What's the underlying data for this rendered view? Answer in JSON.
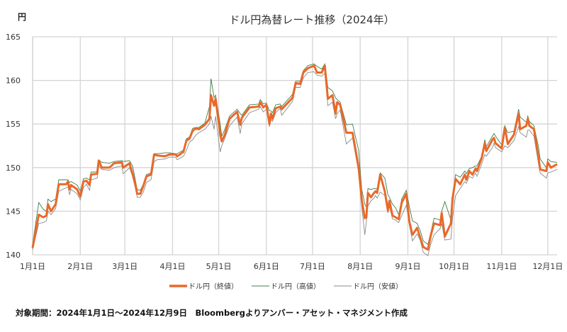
{
  "chart_data": {
    "type": "line",
    "title": "ドル円為替レート推移（2024年）",
    "ylabel": "円",
    "xlabel": "",
    "ylim": [
      140,
      165
    ],
    "yticks": [
      140,
      145,
      150,
      155,
      160,
      165
    ],
    "x_unit": "day of year 2024 (0 = Jan 1)",
    "xlim": [
      0,
      343
    ],
    "xticks": [
      {
        "day": 0,
        "label": "1月1日"
      },
      {
        "day": 31,
        "label": "2月1日"
      },
      {
        "day": 60,
        "label": "3月1日"
      },
      {
        "day": 91,
        "label": "4月1日"
      },
      {
        "day": 121,
        "label": "5月1日"
      },
      {
        "day": 152,
        "label": "6月1日"
      },
      {
        "day": 182,
        "label": "7月1日"
      },
      {
        "day": 213,
        "label": "8月1日"
      },
      {
        "day": 244,
        "label": "9月1日"
      },
      {
        "day": 274,
        "label": "10月1日"
      },
      {
        "day": 305,
        "label": "11月1日"
      },
      {
        "day": 335,
        "label": "12月1日"
      }
    ],
    "grid": true,
    "legend_position": "bottom",
    "series": [
      {
        "name": "ドル円（終値）",
        "color": "#e8692a"
      },
      {
        "name": "ドル円（高値）",
        "color": "#3f7f4a"
      },
      {
        "name": "ドル円（安値）",
        "color": "#8a8a8a"
      }
    ],
    "points_columns": [
      "day",
      "close",
      "high",
      "low"
    ],
    "points": [
      [
        0,
        140.8,
        141.2,
        140.6
      ],
      [
        4,
        144.6,
        146.0,
        143.6
      ],
      [
        7,
        144.3,
        145.2,
        143.7
      ],
      [
        9,
        144.5,
        145.0,
        143.9
      ],
      [
        10,
        145.8,
        146.4,
        145.0
      ],
      [
        12,
        145.0,
        146.1,
        144.6
      ],
      [
        15,
        145.8,
        146.4,
        145.3
      ],
      [
        17,
        148.1,
        148.6,
        147.3
      ],
      [
        22,
        148.1,
        148.6,
        147.7
      ],
      [
        23,
        148.4,
        148.6,
        147.8
      ],
      [
        24,
        147.5,
        148.3,
        146.9
      ],
      [
        25,
        148.0,
        148.4,
        147.5
      ],
      [
        29,
        147.5,
        148.0,
        147.0
      ],
      [
        31,
        146.7,
        147.3,
        146.3
      ],
      [
        33,
        148.4,
        148.7,
        147.7
      ],
      [
        35,
        148.5,
        148.8,
        148.1
      ],
      [
        37,
        148.0,
        148.6,
        147.4
      ],
      [
        38,
        149.2,
        149.5,
        148.6
      ],
      [
        42,
        149.3,
        149.5,
        148.8
      ],
      [
        43,
        150.8,
        150.9,
        150.2
      ],
      [
        45,
        150.0,
        150.6,
        149.8
      ],
      [
        50,
        150.0,
        150.5,
        149.7
      ],
      [
        53,
        150.5,
        150.7,
        150.0
      ],
      [
        58,
        150.6,
        150.8,
        150.2
      ],
      [
        59,
        150.0,
        150.7,
        149.3
      ],
      [
        63,
        150.5,
        150.8,
        150.0
      ],
      [
        65,
        149.3,
        150.2,
        149.0
      ],
      [
        67,
        147.9,
        148.4,
        147.5
      ],
      [
        68,
        147.0,
        147.5,
        146.6
      ],
      [
        70,
        147.0,
        147.4,
        146.6
      ],
      [
        72,
        147.9,
        148.1,
        147.2
      ],
      [
        74,
        149.0,
        149.2,
        148.3
      ],
      [
        77,
        149.2,
        149.4,
        148.6
      ],
      [
        79,
        151.5,
        151.6,
        150.7
      ],
      [
        81,
        151.4,
        151.6,
        150.9
      ],
      [
        86,
        151.3,
        151.7,
        151.0
      ],
      [
        89,
        151.5,
        151.7,
        151.2
      ],
      [
        93,
        151.5,
        151.6,
        151.2
      ],
      [
        94,
        151.3,
        151.6,
        150.9
      ],
      [
        98,
        151.8,
        152.0,
        151.3
      ],
      [
        100,
        153.1,
        153.3,
        152.0
      ],
      [
        102,
        153.3,
        153.5,
        152.9
      ],
      [
        104,
        154.2,
        154.5,
        153.2
      ],
      [
        106,
        154.5,
        154.6,
        153.7
      ],
      [
        108,
        154.4,
        154.6,
        154.0
      ],
      [
        112,
        154.9,
        155.1,
        154.4
      ],
      [
        115,
        155.6,
        157.0,
        155.0
      ],
      [
        116,
        158.3,
        160.2,
        155.9
      ],
      [
        118,
        157.1,
        158.0,
        154.4
      ],
      [
        119,
        157.9,
        158.3,
        155.9
      ],
      [
        122,
        153.8,
        155.0,
        151.8
      ],
      [
        123,
        153.0,
        153.6,
        152.5
      ],
      [
        125,
        153.8,
        154.4,
        153.4
      ],
      [
        128,
        155.6,
        155.9,
        154.8
      ],
      [
        133,
        156.4,
        156.7,
        155.8
      ],
      [
        135,
        154.9,
        156.2,
        153.9
      ],
      [
        136,
        155.7,
        156.0,
        155.0
      ],
      [
        141,
        156.9,
        157.2,
        156.3
      ],
      [
        147,
        157.0,
        157.3,
        156.7
      ],
      [
        148,
        157.5,
        157.8,
        157.0
      ],
      [
        150,
        156.9,
        157.3,
        156.4
      ],
      [
        152,
        157.2,
        157.4,
        156.7
      ],
      [
        154,
        155.0,
        156.5,
        154.7
      ],
      [
        155,
        156.2,
        156.5,
        155.5
      ],
      [
        156,
        155.6,
        156.3,
        155.3
      ],
      [
        158,
        156.8,
        157.2,
        156.3
      ],
      [
        161,
        157.0,
        157.3,
        156.8
      ],
      [
        162,
        156.7,
        157.0,
        156.0
      ],
      [
        169,
        158.0,
        158.4,
        157.6
      ],
      [
        171,
        159.7,
        159.9,
        159.2
      ],
      [
        174,
        159.6,
        159.9,
        159.2
      ],
      [
        176,
        160.9,
        161.1,
        160.3
      ],
      [
        179,
        161.4,
        161.7,
        160.9
      ],
      [
        183,
        161.7,
        161.9,
        161.0
      ],
      [
        185,
        160.9,
        161.6,
        160.6
      ],
      [
        188,
        160.9,
        161.3,
        160.5
      ],
      [
        190,
        161.7,
        161.9,
        160.8
      ],
      [
        192,
        157.9,
        159.2,
        157.1
      ],
      [
        195,
        158.3,
        158.8,
        157.5
      ],
      [
        197,
        156.2,
        158.0,
        155.6
      ],
      [
        198,
        157.5,
        157.8,
        156.2
      ],
      [
        200,
        157.2,
        157.5,
        156.6
      ],
      [
        204,
        154.0,
        154.9,
        152.7
      ],
      [
        208,
        154.0,
        155.0,
        153.4
      ],
      [
        212,
        150.0,
        152.0,
        149.5
      ],
      [
        214,
        146.3,
        147.5,
        145.5
      ],
      [
        216,
        144.2,
        145.8,
        142.3
      ],
      [
        217,
        144.3,
        145.5,
        143.8
      ],
      [
        218,
        147.1,
        147.6,
        145.6
      ],
      [
        220,
        146.6,
        147.5,
        146.2
      ],
      [
        222,
        147.1,
        147.6,
        146.5
      ],
      [
        223,
        147.3,
        147.6,
        146.8
      ],
      [
        224,
        147.1,
        147.6,
        146.5
      ],
      [
        226,
        149.2,
        149.4,
        147.2
      ],
      [
        229,
        147.3,
        148.8,
        146.8
      ],
      [
        231,
        145.1,
        146.9,
        144.8
      ],
      [
        232,
        146.2,
        146.6,
        145.6
      ],
      [
        234,
        144.5,
        145.8,
        144.1
      ],
      [
        236,
        144.3,
        145.4,
        144.0
      ],
      [
        238,
        144.1,
        144.6,
        143.7
      ],
      [
        240,
        146.0,
        146.4,
        144.5
      ],
      [
        243,
        147.0,
        147.4,
        145.7
      ],
      [
        245,
        143.8,
        145.5,
        143.4
      ],
      [
        247,
        142.3,
        143.9,
        141.6
      ],
      [
        250,
        143.1,
        143.6,
        142.4
      ],
      [
        252,
        142.0,
        142.8,
        141.7
      ],
      [
        254,
        140.9,
        141.6,
        140.3
      ],
      [
        257,
        140.6,
        141.2,
        139.9
      ],
      [
        259,
        142.3,
        142.6,
        141.3
      ],
      [
        261,
        143.6,
        144.2,
        142.3
      ],
      [
        265,
        143.4,
        144.0,
        143.0
      ],
      [
        266,
        144.8,
        145.0,
        143.6
      ],
      [
        268,
        142.1,
        146.1,
        141.7
      ],
      [
        272,
        143.6,
        144.0,
        141.8
      ],
      [
        273,
        146.4,
        146.8,
        144.2
      ],
      [
        275,
        148.7,
        149.2,
        146.8
      ],
      [
        278,
        148.1,
        148.9,
        147.6
      ],
      [
        281,
        149.2,
        149.6,
        148.4
      ],
      [
        282,
        148.6,
        149.3,
        148.2
      ],
      [
        284,
        149.6,
        149.9,
        149.0
      ],
      [
        286,
        149.2,
        150.0,
        148.8
      ],
      [
        288,
        149.9,
        150.2,
        149.4
      ],
      [
        289,
        149.6,
        150.2,
        149.0
      ],
      [
        292,
        151.1,
        151.3,
        150.4
      ],
      [
        294,
        152.8,
        153.2,
        151.5
      ],
      [
        295,
        151.9,
        152.4,
        151.3
      ],
      [
        299,
        153.2,
        153.6,
        152.3
      ],
      [
        300,
        153.4,
        153.9,
        152.8
      ],
      [
        301,
        152.8,
        153.6,
        152.3
      ],
      [
        305,
        152.2,
        152.6,
        151.8
      ],
      [
        307,
        154.6,
        154.8,
        152.5
      ],
      [
        309,
        152.7,
        154.0,
        152.3
      ],
      [
        313,
        153.8,
        154.2,
        153.1
      ],
      [
        316,
        156.2,
        156.7,
        154.7
      ],
      [
        317,
        154.4,
        155.8,
        154.0
      ],
      [
        321,
        154.8,
        155.2,
        153.5
      ],
      [
        322,
        155.6,
        155.9,
        154.3
      ],
      [
        323,
        154.8,
        155.3,
        154.3
      ],
      [
        326,
        154.4,
        154.8,
        153.6
      ],
      [
        329,
        151.1,
        152.3,
        150.4
      ],
      [
        330,
        149.8,
        151.0,
        149.4
      ],
      [
        334,
        149.6,
        150.0,
        148.8
      ],
      [
        335,
        150.6,
        151.0,
        149.4
      ],
      [
        337,
        150.0,
        150.7,
        149.5
      ],
      [
        341,
        150.4,
        150.6,
        149.8
      ]
    ],
    "footnote": "対象期間：2024年1月1日～2024年12月9日　Bloombergよりアンバー・アセット・マネジメント作成"
  }
}
